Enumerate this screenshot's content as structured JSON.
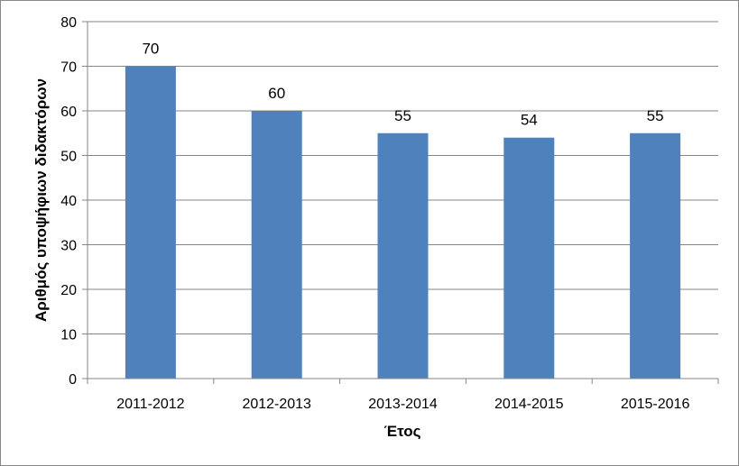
{
  "chart_data": {
    "type": "bar",
    "categories": [
      "2011-2012",
      "2012-2013",
      "2013-2014",
      "2014-2015",
      "2015-2016"
    ],
    "values": [
      70,
      60,
      55,
      54,
      55
    ],
    "data_labels": [
      "70",
      "60",
      "55",
      "54",
      "55"
    ],
    "title": "",
    "xlabel": "Έτος",
    "ylabel": "Αριθμός υποψήφιων διδακτόρων",
    "ylim": [
      0,
      80
    ],
    "yticks": [
      0,
      10,
      20,
      30,
      40,
      50,
      60,
      70,
      80
    ],
    "grid": true,
    "legend": "none",
    "bar_color": "#4f81bd",
    "grid_color": "#868686"
  }
}
